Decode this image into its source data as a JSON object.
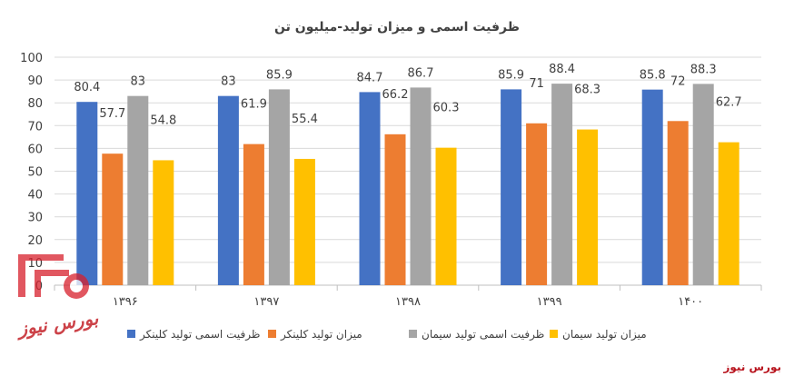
{
  "chart_data": {
    "type": "bar",
    "title": "ظرفیت اسمی و میزان تولید-میلیون تن",
    "categories": [
      "۱۳۹۶",
      "۱۳۹۷",
      "۱۳۹۸",
      "۱۳۹۹",
      "۱۴۰۰"
    ],
    "series": [
      {
        "name": "ظرفیت اسمی تولید کلینکر",
        "color": "#4472C4",
        "values": [
          80.4,
          83,
          84.7,
          85.9,
          85.8
        ]
      },
      {
        "name": "میزان تولید کلینکر",
        "color": "#ED7D31",
        "values": [
          57.7,
          61.9,
          66.2,
          71,
          72
        ]
      },
      {
        "name": "ظرفیت اسمی تولید سیمان",
        "color": "#A5A5A5",
        "values": [
          83,
          85.9,
          86.7,
          88.4,
          88.3
        ]
      },
      {
        "name": "میزان تولید سیمان",
        "color": "#FFC000",
        "values": [
          54.8,
          55.4,
          60.3,
          68.3,
          62.7
        ]
      }
    ],
    "ylim": [
      0,
      100
    ],
    "yticks": [
      0,
      10,
      20,
      30,
      40,
      50,
      60,
      70,
      80,
      90,
      100
    ],
    "grid": true,
    "legend": "bottom",
    "data_labels": true
  },
  "watermark": {
    "text": "بورس نیوز",
    "color": "#c0131b"
  },
  "brand": {
    "text": "بورس نیوز",
    "color": "#b8141e"
  }
}
